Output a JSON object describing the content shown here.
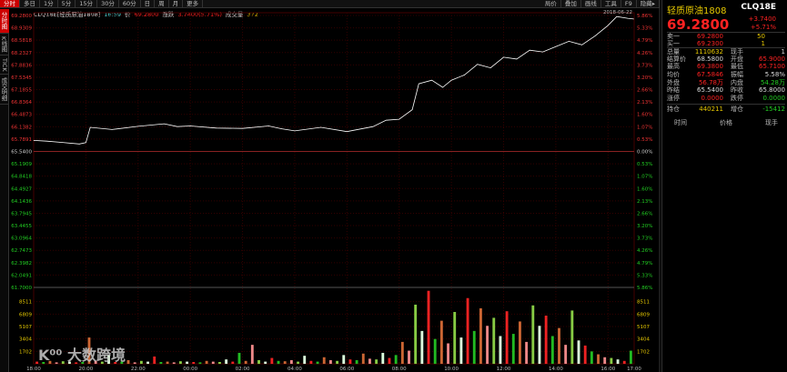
{
  "topbar": {
    "tabs": [
      "分时",
      "多日",
      "1分",
      "5分",
      "15分",
      "30分",
      "60分",
      "日",
      "周",
      "月",
      "更多"
    ],
    "right_tabs": [
      "局价",
      "叠加",
      "画线",
      "工具",
      "F9",
      "隐藏▸"
    ]
  },
  "side_tabs": [
    "分时图",
    "K线图",
    "TICK",
    "成交明细"
  ],
  "info": {
    "symbol": "CLQ18E[轻质原油1808]",
    "time": "16:59",
    "price_label": "价",
    "price": "69.2800",
    "change_label": "涨跌",
    "change": "3.7400(5.71%)",
    "volume_label": "成交量",
    "volume": "372"
  },
  "date": "2018-06-22",
  "panel": {
    "title": "轻质原油1808",
    "code": "CLQ18E",
    "price": "69.2800",
    "change": "+3.7400",
    "change_pct": "+5.71%",
    "quotes": [
      {
        "label": "卖一",
        "price": "69.2800",
        "qty": "50"
      },
      {
        "label": "买一",
        "price": "69.2300",
        "qty": "1"
      }
    ],
    "stats": [
      [
        "总量",
        "1110632",
        "现手",
        "1"
      ],
      [
        "结算价",
        "68.5800",
        "开盘",
        "65.9000"
      ],
      [
        "最高",
        "69.3800",
        "最低",
        "65.7100"
      ],
      [
        "均价",
        "67.5846",
        "振幅",
        "5.58%"
      ],
      [
        "外盘",
        "56.78万",
        "内盘",
        "54.28万"
      ],
      [
        "昨结",
        "65.5400",
        "昨收",
        "65.8000"
      ],
      [
        "涨停",
        "0.0000",
        "跌停",
        "0.0000"
      ]
    ],
    "position": [
      "持仓",
      "440211",
      "增仓",
      "-15412"
    ],
    "table_headers": [
      "时间",
      "价格",
      "现手"
    ]
  },
  "watermark": "大数跨境",
  "colors": {
    "up": "#ff2222",
    "down": "#22cc22",
    "accent": "#cc0000",
    "line": "#ffffff",
    "vol_label": "#e6c800"
  },
  "chart_data": {
    "type": "line",
    "price_ticks_up": [
      "69.2800",
      "68.9309",
      "68.5818",
      "68.2327",
      "67.8836",
      "67.5345",
      "67.1855",
      "66.8364",
      "66.4873",
      "66.1382",
      "65.7891"
    ],
    "price_base": "65.5400",
    "price_ticks_down": [
      "65.1909",
      "64.8418",
      "64.4927",
      "64.1436",
      "63.7945",
      "63.4455",
      "63.0964",
      "62.7473",
      "62.3982",
      "62.0491",
      "61.7000"
    ],
    "pct_ticks": [
      "5.86%",
      "5.33%",
      "4.79%",
      "4.26%",
      "3.73%",
      "3.20%",
      "2.66%",
      "2.13%",
      "1.60%",
      "1.07%",
      "0.53%",
      "0.00%",
      "0.53%",
      "1.07%",
      "1.60%",
      "2.13%",
      "2.66%",
      "3.20%",
      "3.73%",
      "4.26%",
      "4.79%",
      "5.33%",
      "5.86%"
    ],
    "ylim": [
      61.7,
      69.38
    ],
    "vol_ticks": [
      "8511",
      "6809",
      "5107",
      "3404",
      "1702"
    ],
    "vol_max": 10213,
    "x_ticks": [
      "18:00",
      "20:00",
      "22:00",
      "00:00",
      "02:00",
      "04:00",
      "06:00",
      "08:00",
      "10:00",
      "12:00",
      "14:00",
      "16:00",
      "17:00"
    ],
    "price": [
      [
        "18:00",
        65.85
      ],
      [
        "18:30",
        65.83
      ],
      [
        "19:00",
        65.8
      ],
      [
        "19:45",
        65.75
      ],
      [
        "20:00",
        65.79
      ],
      [
        "20:10",
        66.22
      ],
      [
        "21:00",
        66.16
      ],
      [
        "22:00",
        66.25
      ],
      [
        "23:00",
        66.32
      ],
      [
        "23:30",
        66.24
      ],
      [
        "00:00",
        66.26
      ],
      [
        "01:00",
        66.2
      ],
      [
        "02:00",
        66.19
      ],
      [
        "03:00",
        66.26
      ],
      [
        "03:30",
        66.18
      ],
      [
        "04:00",
        66.12
      ],
      [
        "05:00",
        66.22
      ],
      [
        "06:00",
        66.1
      ],
      [
        "07:00",
        66.24
      ],
      [
        "07:30",
        66.42
      ],
      [
        "08:00",
        66.45
      ],
      [
        "08:30",
        66.72
      ],
      [
        "08:45",
        67.45
      ],
      [
        "09:15",
        67.55
      ],
      [
        "09:40",
        67.35
      ],
      [
        "10:00",
        67.55
      ],
      [
        "10:30",
        67.7
      ],
      [
        "11:00",
        68.0
      ],
      [
        "11:30",
        67.9
      ],
      [
        "12:00",
        68.2
      ],
      [
        "12:30",
        68.15
      ],
      [
        "13:00",
        68.4
      ],
      [
        "13:30",
        68.35
      ],
      [
        "14:00",
        68.5
      ],
      [
        "14:30",
        68.65
      ],
      [
        "15:00",
        68.55
      ],
      [
        "15:30",
        68.8
      ],
      [
        "16:00",
        69.1
      ],
      [
        "16:20",
        69.35
      ],
      [
        "16:45",
        69.3
      ],
      [
        "16:59",
        69.28
      ]
    ],
    "volume": [
      300,
      250,
      400,
      200,
      350,
      300,
      200,
      250,
      3600,
      400,
      300,
      1200,
      250,
      300,
      500,
      200,
      400,
      300,
      1000,
      250,
      300,
      200,
      350,
      300,
      250,
      200,
      400,
      300,
      250,
      600,
      300,
      1500,
      400,
      2600,
      500,
      300,
      800,
      400,
      350,
      500,
      300,
      1100,
      400,
      300,
      900,
      500,
      400,
      1200,
      600,
      500,
      1400,
      700,
      600,
      1500,
      800,
      1200,
      3000,
      1800,
      8100,
      4500,
      10000,
      3400,
      5900,
      2800,
      7100,
      3600,
      9000,
      4500,
      7600,
      5200,
      6300,
      3800,
      7200,
      4100,
      5800,
      3000,
      8000,
      5200,
      6600,
      3800,
      4900,
      2600,
      7300,
      3200,
      2500,
      1700,
      1300,
      900,
      800,
      600,
      400,
      1800
    ]
  }
}
